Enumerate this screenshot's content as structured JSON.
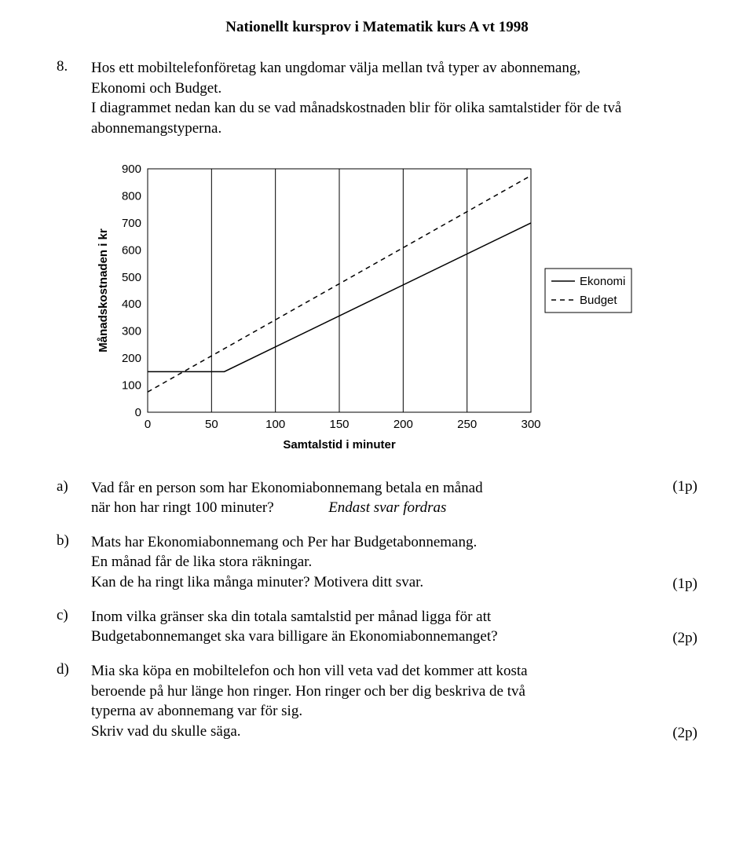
{
  "header": "Nationellt kursprov i Matematik kurs A vt 1998",
  "question": {
    "number": "8.",
    "intro_line1": "Hos ett mobiltelefonföretag kan ungdomar välja mellan två typer av abonnemang,",
    "intro_line2": "Ekonomi och Budget.",
    "intro_line3": "I diagrammet nedan kan du se vad månadskostnaden blir för olika samtalstider för de två abonnemangstyperna."
  },
  "chart": {
    "type": "line",
    "xlabel": "Samtalstid i minuter",
    "ylabel": "Månadskostnaden i kr",
    "xlim": [
      0,
      300
    ],
    "ylim": [
      0,
      900
    ],
    "xtick_step": 50,
    "ytick_step": 100,
    "xticks": [
      0,
      50,
      100,
      150,
      200,
      250,
      300
    ],
    "yticks": [
      0,
      100,
      200,
      300,
      400,
      500,
      600,
      700,
      800,
      900
    ],
    "grid_color": "#000000",
    "background_color": "#ffffff",
    "line_color": "#000000",
    "line_width": 1.5,
    "series": {
      "ekonomi": {
        "label": "Ekonomi",
        "style": "solid",
        "points": [
          [
            0,
            150
          ],
          [
            50,
            150
          ],
          [
            60,
            150
          ],
          [
            300,
            700
          ]
        ]
      },
      "budget": {
        "label": "Budget",
        "style": "dashed",
        "dash": "6,5",
        "points": [
          [
            0,
            75
          ],
          [
            300,
            875
          ]
        ]
      }
    },
    "legend_dash": "6,5",
    "label_fontsize": 15,
    "tick_fontsize": 15
  },
  "parts": {
    "a": {
      "label": "a)",
      "line1": "Vad får en person som har Ekonomiabonnemang betala en månad",
      "line2_left": "när hon har ringt 100 minuter?",
      "line2_right_italic": "Endast svar fordras",
      "points": "(1p)"
    },
    "b": {
      "label": "b)",
      "line1": "Mats har Ekonomiabonnemang och Per har Budgetabonnemang.",
      "line2": "En månad får de lika stora räkningar.",
      "line3": "Kan de ha ringt lika många minuter? Motivera ditt svar.",
      "points": "(1p)"
    },
    "c": {
      "label": "c)",
      "line1": "Inom vilka gränser ska din totala samtalstid per månad ligga för att",
      "line2": "Budgetabonnemanget ska vara billigare än Ekonomiabonnemanget?",
      "points": "(2p)"
    },
    "d": {
      "label": "d)",
      "line1": "Mia ska köpa en mobiltelefon och hon vill veta vad det kommer att kosta",
      "line2": "beroende på hur länge hon ringer. Hon ringer och ber dig beskriva de två",
      "line3": "typerna av abonnemang var för sig.",
      "line4": "Skriv vad du skulle säga.",
      "points": "(2p)"
    }
  }
}
